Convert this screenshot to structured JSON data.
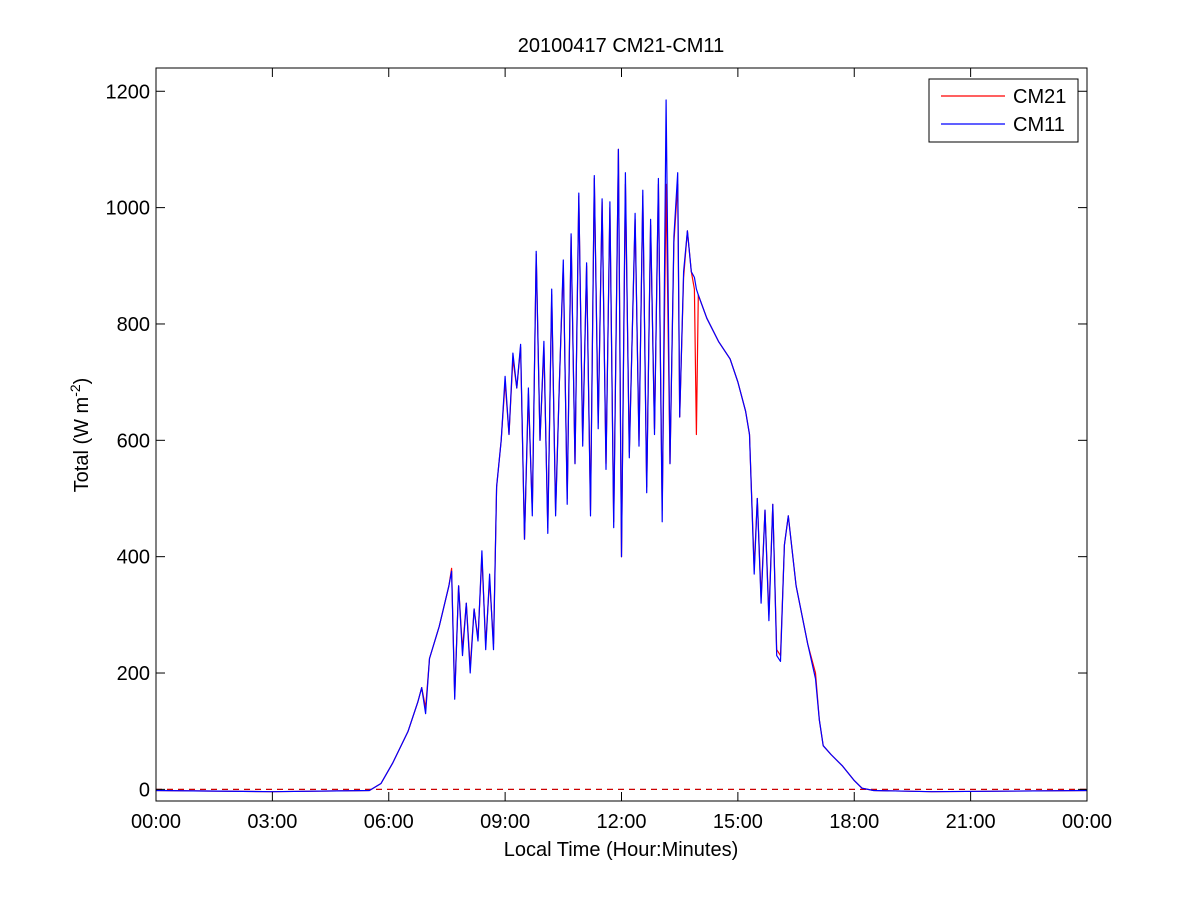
{
  "chart_data": {
    "type": "line",
    "title": "20100417 CM21-CM11",
    "xlabel": "Local Time (Hour:Minutes)",
    "ylabel": {
      "text": "Total (W m",
      "superscript": "-2",
      "close": ")"
    },
    "xlim": [
      0,
      24
    ],
    "ylim": [
      -20,
      1240
    ],
    "x_ticks": [
      {
        "value": 0,
        "label": "00:00"
      },
      {
        "value": 3,
        "label": "03:00"
      },
      {
        "value": 6,
        "label": "06:00"
      },
      {
        "value": 9,
        "label": "09:00"
      },
      {
        "value": 12,
        "label": "12:00"
      },
      {
        "value": 15,
        "label": "15:00"
      },
      {
        "value": 18,
        "label": "18:00"
      },
      {
        "value": 21,
        "label": "21:00"
      },
      {
        "value": 24,
        "label": "00:00"
      }
    ],
    "y_ticks": [
      {
        "value": 0,
        "label": "0"
      },
      {
        "value": 200,
        "label": "200"
      },
      {
        "value": 400,
        "label": "400"
      },
      {
        "value": 600,
        "label": "600"
      },
      {
        "value": 800,
        "label": "800"
      },
      {
        "value": 1000,
        "label": "1000"
      },
      {
        "value": 1200,
        "label": "1200"
      }
    ],
    "grid": false,
    "legend_position": "top-right",
    "reference_line": {
      "y": 0,
      "style": "dashed",
      "color": "#cc0000"
    },
    "series": [
      {
        "name": "CM21",
        "color": "#ff0000",
        "points": [
          [
            0,
            -2
          ],
          [
            3,
            -4
          ],
          [
            5.5,
            -2
          ],
          [
            5.8,
            10
          ],
          [
            6.1,
            45
          ],
          [
            6.5,
            100
          ],
          [
            6.75,
            150
          ],
          [
            6.85,
            175
          ],
          [
            6.95,
            140
          ],
          [
            7.05,
            225
          ],
          [
            7.3,
            280
          ],
          [
            7.55,
            350
          ],
          [
            7.62,
            380
          ],
          [
            7.7,
            160
          ],
          [
            7.8,
            350
          ],
          [
            7.9,
            240
          ],
          [
            8.0,
            320
          ],
          [
            8.1,
            210
          ],
          [
            8.2,
            310
          ],
          [
            8.3,
            260
          ],
          [
            8.4,
            400
          ],
          [
            8.5,
            250
          ],
          [
            8.6,
            360
          ],
          [
            8.7,
            250
          ],
          [
            8.78,
            520
          ],
          [
            8.9,
            600
          ],
          [
            9.0,
            700
          ],
          [
            9.1,
            610
          ],
          [
            9.2,
            740
          ],
          [
            9.3,
            690
          ],
          [
            9.4,
            760
          ],
          [
            9.5,
            430
          ],
          [
            9.6,
            680
          ],
          [
            9.7,
            480
          ],
          [
            9.8,
            920
          ],
          [
            9.9,
            600
          ],
          [
            10.0,
            760
          ],
          [
            10.1,
            450
          ],
          [
            10.2,
            850
          ],
          [
            10.3,
            480
          ],
          [
            10.4,
            700
          ],
          [
            10.5,
            900
          ],
          [
            10.6,
            500
          ],
          [
            10.7,
            950
          ],
          [
            10.8,
            560
          ],
          [
            10.9,
            1020
          ],
          [
            11.0,
            600
          ],
          [
            11.1,
            900
          ],
          [
            11.2,
            480
          ],
          [
            11.3,
            1050
          ],
          [
            11.4,
            630
          ],
          [
            11.5,
            1010
          ],
          [
            11.6,
            560
          ],
          [
            11.7,
            1000
          ],
          [
            11.8,
            460
          ],
          [
            11.92,
            1100
          ],
          [
            12.0,
            400
          ],
          [
            12.1,
            1040
          ],
          [
            12.2,
            580
          ],
          [
            12.35,
            980
          ],
          [
            12.45,
            600
          ],
          [
            12.55,
            1020
          ],
          [
            12.65,
            520
          ],
          [
            12.75,
            970
          ],
          [
            12.85,
            620
          ],
          [
            12.95,
            1040
          ],
          [
            13.05,
            480
          ],
          [
            13.15,
            1040
          ],
          [
            13.25,
            560
          ],
          [
            13.35,
            940
          ],
          [
            13.45,
            1040
          ],
          [
            13.5,
            640
          ],
          [
            13.6,
            880
          ],
          [
            13.7,
            960
          ],
          [
            13.8,
            890
          ],
          [
            13.88,
            860
          ],
          [
            13.93,
            610
          ],
          [
            13.98,
            850
          ],
          [
            14.2,
            810
          ],
          [
            14.5,
            770
          ],
          [
            14.8,
            740
          ],
          [
            15.0,
            700
          ],
          [
            15.2,
            650
          ],
          [
            15.3,
            610
          ],
          [
            15.42,
            380
          ],
          [
            15.5,
            500
          ],
          [
            15.6,
            330
          ],
          [
            15.7,
            480
          ],
          [
            15.8,
            300
          ],
          [
            15.9,
            490
          ],
          [
            16.0,
            240
          ],
          [
            16.1,
            230
          ],
          [
            16.2,
            420
          ],
          [
            16.3,
            470
          ],
          [
            16.5,
            350
          ],
          [
            16.8,
            250
          ],
          [
            17.0,
            200
          ],
          [
            17.1,
            120
          ],
          [
            17.2,
            75
          ],
          [
            17.4,
            60
          ],
          [
            17.7,
            40
          ],
          [
            18.0,
            15
          ],
          [
            18.2,
            2
          ],
          [
            18.5,
            -2
          ],
          [
            20.0,
            -4
          ],
          [
            24.0,
            -2
          ]
        ]
      },
      {
        "name": "CM11",
        "color": "#0000ff",
        "points": [
          [
            0,
            -2
          ],
          [
            3,
            -4
          ],
          [
            5.5,
            -2
          ],
          [
            5.8,
            10
          ],
          [
            6.1,
            45
          ],
          [
            6.5,
            100
          ],
          [
            6.75,
            150
          ],
          [
            6.85,
            175
          ],
          [
            6.95,
            130
          ],
          [
            7.05,
            225
          ],
          [
            7.3,
            280
          ],
          [
            7.55,
            350
          ],
          [
            7.62,
            375
          ],
          [
            7.7,
            155
          ],
          [
            7.8,
            350
          ],
          [
            7.9,
            230
          ],
          [
            8.0,
            320
          ],
          [
            8.1,
            200
          ],
          [
            8.2,
            310
          ],
          [
            8.3,
            255
          ],
          [
            8.4,
            410
          ],
          [
            8.5,
            240
          ],
          [
            8.6,
            370
          ],
          [
            8.7,
            240
          ],
          [
            8.78,
            520
          ],
          [
            8.9,
            600
          ],
          [
            9.0,
            710
          ],
          [
            9.1,
            610
          ],
          [
            9.2,
            750
          ],
          [
            9.3,
            690
          ],
          [
            9.4,
            765
          ],
          [
            9.5,
            430
          ],
          [
            9.6,
            690
          ],
          [
            9.7,
            470
          ],
          [
            9.8,
            925
          ],
          [
            9.9,
            600
          ],
          [
            10.0,
            770
          ],
          [
            10.1,
            440
          ],
          [
            10.2,
            860
          ],
          [
            10.3,
            470
          ],
          [
            10.4,
            700
          ],
          [
            10.5,
            910
          ],
          [
            10.6,
            490
          ],
          [
            10.7,
            955
          ],
          [
            10.8,
            560
          ],
          [
            10.9,
            1025
          ],
          [
            11.0,
            590
          ],
          [
            11.1,
            905
          ],
          [
            11.2,
            470
          ],
          [
            11.3,
            1055
          ],
          [
            11.4,
            620
          ],
          [
            11.5,
            1015
          ],
          [
            11.6,
            550
          ],
          [
            11.7,
            1010
          ],
          [
            11.8,
            450
          ],
          [
            11.92,
            1100
          ],
          [
            12.0,
            400
          ],
          [
            12.1,
            1060
          ],
          [
            12.2,
            570
          ],
          [
            12.35,
            990
          ],
          [
            12.45,
            590
          ],
          [
            12.55,
            1030
          ],
          [
            12.65,
            510
          ],
          [
            12.75,
            980
          ],
          [
            12.85,
            610
          ],
          [
            12.95,
            1050
          ],
          [
            13.05,
            460
          ],
          [
            13.15,
            1185
          ],
          [
            13.25,
            560
          ],
          [
            13.35,
            950
          ],
          [
            13.45,
            1060
          ],
          [
            13.5,
            640
          ],
          [
            13.6,
            890
          ],
          [
            13.7,
            960
          ],
          [
            13.8,
            890
          ],
          [
            13.88,
            880
          ],
          [
            13.93,
            860
          ],
          [
            13.98,
            850
          ],
          [
            14.2,
            810
          ],
          [
            14.5,
            770
          ],
          [
            14.8,
            740
          ],
          [
            15.0,
            700
          ],
          [
            15.2,
            650
          ],
          [
            15.3,
            610
          ],
          [
            15.42,
            370
          ],
          [
            15.5,
            500
          ],
          [
            15.6,
            320
          ],
          [
            15.7,
            480
          ],
          [
            15.8,
            290
          ],
          [
            15.9,
            490
          ],
          [
            16.0,
            230
          ],
          [
            16.1,
            220
          ],
          [
            16.2,
            420
          ],
          [
            16.3,
            470
          ],
          [
            16.5,
            350
          ],
          [
            16.8,
            250
          ],
          [
            17.0,
            190
          ],
          [
            17.1,
            120
          ],
          [
            17.2,
            75
          ],
          [
            17.4,
            60
          ],
          [
            17.7,
            40
          ],
          [
            18.0,
            15
          ],
          [
            18.2,
            2
          ],
          [
            18.5,
            -2
          ],
          [
            20.0,
            -4
          ],
          [
            24.0,
            -2
          ]
        ]
      }
    ]
  }
}
